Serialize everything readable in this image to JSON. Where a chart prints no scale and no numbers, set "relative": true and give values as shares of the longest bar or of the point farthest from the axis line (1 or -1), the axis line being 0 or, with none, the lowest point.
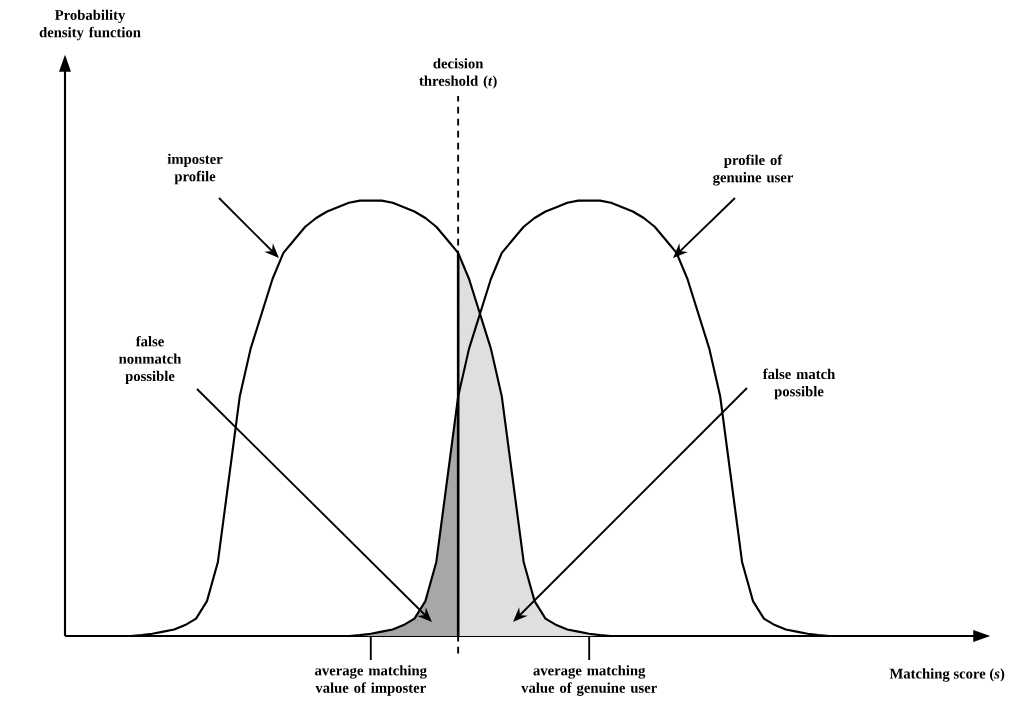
{
  "chart_data": {
    "type": "line",
    "relative": true,
    "xlabel": "Matching score (*s*)",
    "categories": [
      null,
      null,
      null,
      null,
      null,
      null,
      null,
      null,
      null,
      null,
      null,
      null,
      null,
      null,
      null,
      null,
      null,
      null,
      null,
      null,
      null,
      null,
      null,
      null,
      null,
      null,
      null,
      null,
      "average matching value of imposter",
      null,
      null,
      null,
      null,
      null,
      null,
      null,
      null,
      null,
      null,
      null,
      null,
      null,
      null,
      null,
      null,
      null,
      null,
      null,
      "average matching value of genuine user",
      null,
      null,
      null,
      null,
      null,
      null,
      null,
      null,
      null,
      null,
      null,
      null,
      null,
      null,
      null,
      null,
      null,
      null,
      null,
      null,
      null,
      null,
      null,
      null,
      null,
      null,
      null,
      null,
      null,
      null,
      null,
      null,
      null,
      null,
      null
    ],
    "tick_labels": "x",
    "series": [
      {
        "color": "#000000",
        "values": [
          null,
          null,
          null,
          null,
          null,
          null,
          0,
          0.002,
          0.005,
          0.01,
          0.015,
          0.025,
          0.04,
          0.08,
          0.17,
          0.36,
          0.55,
          0.66,
          0.74,
          0.82,
          0.88,
          0.91,
          0.94,
          0.96,
          0.975,
          0.985,
          0.995,
          1,
          1,
          1,
          0.995,
          0.985,
          0.975,
          0.96,
          0.94,
          0.91,
          0.88,
          0.82,
          0.74,
          0.66,
          0.55,
          0.36,
          0.17,
          0.08,
          0.04,
          0.025,
          0.015,
          0.01,
          0.005,
          0.002,
          0,
          null,
          null,
          null,
          null,
          null,
          null,
          null,
          null,
          null,
          null,
          null,
          null,
          null,
          null,
          null,
          null,
          null,
          null,
          null,
          null,
          null,
          null,
          null,
          null,
          null,
          null,
          null,
          null,
          null,
          null,
          null,
          null,
          null
        ]
      },
      {
        "color": "#000000",
        "values": [
          null,
          null,
          null,
          null,
          null,
          null,
          null,
          null,
          null,
          null,
          null,
          null,
          null,
          null,
          null,
          null,
          null,
          null,
          null,
          null,
          null,
          null,
          null,
          null,
          null,
          null,
          0,
          0.002,
          0.005,
          0.01,
          0.015,
          0.025,
          0.04,
          0.08,
          0.17,
          0.36,
          0.55,
          0.66,
          0.74,
          0.82,
          0.88,
          0.91,
          0.94,
          0.96,
          0.975,
          0.985,
          0.995,
          1,
          1,
          1,
          0.995,
          0.985,
          0.975,
          0.96,
          0.94,
          0.91,
          0.88,
          0.82,
          0.74,
          0.66,
          0.55,
          0.36,
          0.17,
          0.08,
          0.04,
          0.025,
          0.015,
          0.01,
          0.005,
          0.002,
          0,
          null,
          null,
          null,
          null,
          null,
          null,
          null,
          null,
          null,
          null,
          null,
          null,
          null
        ]
      },
      {
        "type": "area",
        "color": "#a6a7a9",
        "values": [
          null,
          null,
          null,
          null,
          null,
          null,
          null,
          null,
          null,
          null,
          null,
          null,
          null,
          null,
          null,
          null,
          null,
          null,
          null,
          null,
          null,
          null,
          null,
          null,
          null,
          null,
          0,
          0.002,
          0.005,
          0.01,
          0.015,
          0.025,
          0.04,
          0.08,
          0.17,
          0.36,
          0.55,
          null,
          null,
          null,
          null,
          null,
          null,
          null,
          null,
          null,
          null,
          null,
          null,
          null,
          null,
          null,
          null,
          null,
          null,
          null,
          null,
          null,
          null,
          null,
          null,
          null,
          null,
          null,
          null,
          null,
          null,
          null,
          null,
          null,
          null,
          null,
          null,
          null,
          null,
          null,
          null,
          null,
          null,
          null,
          null,
          null,
          null,
          null
        ]
      },
      {
        "type": "area",
        "color": "#dfdfdf",
        "values": [
          null,
          null,
          null,
          null,
          null,
          null,
          null,
          null,
          null,
          null,
          null,
          null,
          null,
          null,
          null,
          null,
          null,
          null,
          null,
          null,
          null,
          null,
          null,
          null,
          null,
          null,
          null,
          null,
          null,
          null,
          null,
          null,
          null,
          null,
          null,
          null,
          0.88,
          0.82,
          0.74,
          0.66,
          0.55,
          0.36,
          0.17,
          0.08,
          0.04,
          0.025,
          0.015,
          0.01,
          0.005,
          0.002,
          0,
          null,
          null,
          null,
          null,
          null,
          null,
          null,
          null,
          null,
          null,
          null,
          null,
          null,
          null,
          null,
          null,
          null,
          null,
          null,
          null,
          null,
          null,
          null,
          null,
          null,
          null,
          null,
          null,
          null,
          null,
          null,
          null,
          null
        ]
      }
    ],
    "annotations": [
      "imposter profile",
      "profile of genuine user",
      "false nonmatch possible",
      "false match possible",
      "Probability density function",
      "decision threshold (*t*)"
    ],
    "grid": false,
    "marker": "none",
    "line_style": "solid"
  }
}
